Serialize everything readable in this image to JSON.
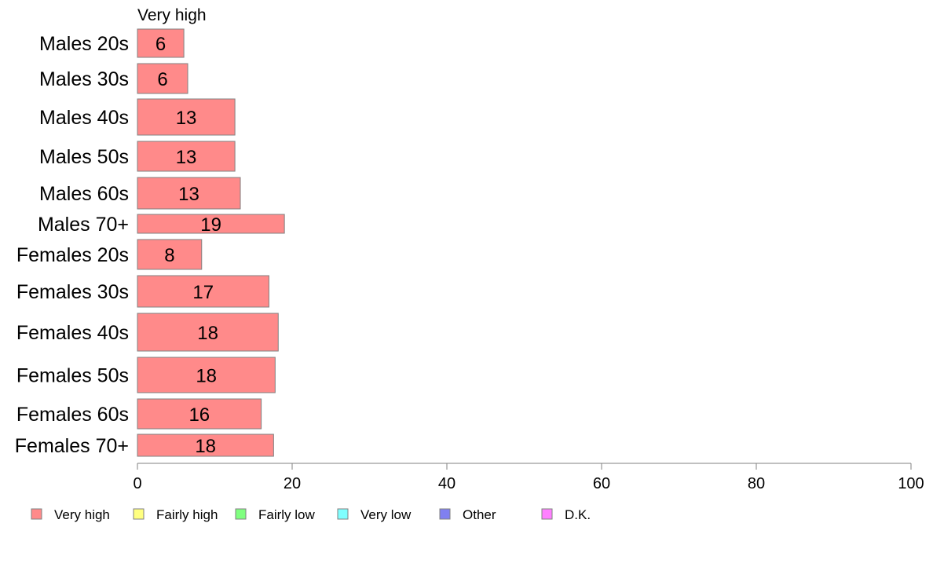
{
  "chart_data": {
    "type": "bar",
    "orientation": "horizontal",
    "stacked": true,
    "title": "",
    "series_caption": "Very high",
    "categories": [
      "Males 20s",
      "Males 30s",
      "Males 40s",
      "Males 50s",
      "Males 60s",
      "Males 70+",
      "Females 20s",
      "Females 30s",
      "Females 40s",
      "Females 50s",
      "Females 60s",
      "Females 70+"
    ],
    "series": [
      {
        "name": "Very high",
        "color": "#ff8a8a",
        "values": [
          6,
          6.5,
          12.6,
          12.6,
          13.3,
          19,
          8.3,
          17,
          18.2,
          17.8,
          16,
          17.6
        ],
        "labels": [
          "6",
          "6",
          "13",
          "13",
          "13",
          "19",
          "8",
          "17",
          "18",
          "18",
          "16",
          "18"
        ]
      }
    ],
    "xlim": [
      0,
      100
    ],
    "xticks": [
      "0",
      "20",
      "40",
      "60",
      "80",
      "100"
    ],
    "xlabel": "",
    "ylabel": "",
    "grid": false,
    "legend_position": "bottom",
    "legend": [
      {
        "name": "Very high",
        "color": "#ff8a8a"
      },
      {
        "name": "Fairly high",
        "color": "#ffff80"
      },
      {
        "name": "Fairly low",
        "color": "#80ff80"
      },
      {
        "name": "Very low",
        "color": "#80ffff"
      },
      {
        "name": "Other",
        "color": "#8080f0"
      },
      {
        "name": "D.K.",
        "color": "#ff80ff"
      }
    ]
  }
}
